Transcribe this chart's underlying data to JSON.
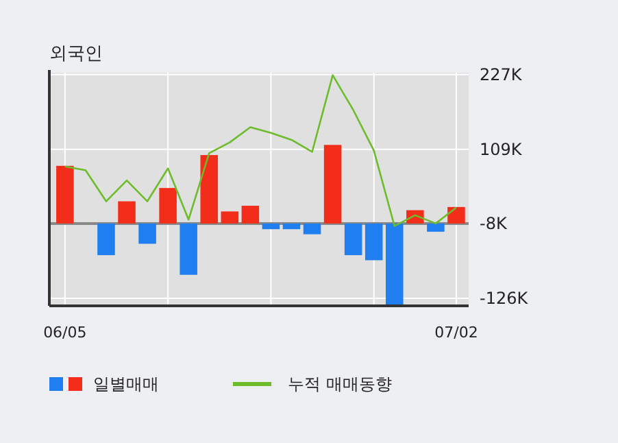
{
  "chart_data": {
    "type": "bar",
    "title": "외국인",
    "categories": [
      "06/05",
      null,
      null,
      null,
      null,
      null,
      null,
      null,
      null,
      null,
      null,
      null,
      null,
      null,
      null,
      null,
      null,
      null,
      null,
      "07/02"
    ],
    "series": [
      {
        "name": "일별매매",
        "base": [
          -8,
          null,
          -8,
          -8,
          -8,
          -8,
          -8,
          -8,
          -8,
          -8,
          -8,
          -8,
          -8,
          -8,
          -8,
          -8,
          -8,
          -8,
          -8,
          -8
        ],
        "values": [
          91,
          null,
          -50,
          35,
          -32,
          56,
          -81,
          108,
          19,
          28,
          -9,
          -9,
          -17,
          124,
          -50,
          -58,
          -128,
          21,
          -13,
          26
        ],
        "colors": [
          "#f22e1a",
          "#f22e1a",
          "#1f7ff0",
          "#f22e1a",
          "#1f7ff0",
          "#f22e1a",
          "#1f7ff0",
          "#f22e1a",
          "#f22e1a",
          "#f22e1a",
          "#1f7ff0",
          "#1f7ff0",
          "#1f7ff0",
          "#f22e1a",
          "#1f7ff0",
          "#1f7ff0",
          "#1f7ff0",
          "#f22e1a",
          "#1f7ff0",
          "#f22e1a"
        ]
      },
      {
        "name": "누적 매매동향",
        "type": "line",
        "color": "#6cbc2c",
        "values": [
          82,
          76,
          27,
          60,
          27,
          79,
          -2,
          103,
          120,
          144,
          135,
          124,
          105,
          226,
          171,
          107,
          -12,
          5,
          -8,
          17
        ]
      }
    ],
    "ylim": [
      -138,
      230
    ],
    "yticks": [
      {
        "value": 227,
        "label": "227K"
      },
      {
        "value": 109,
        "label": "109K"
      },
      {
        "value": -8,
        "label": "-8K"
      },
      {
        "value": -126,
        "label": "-126K"
      }
    ],
    "ref_lines": [
      {
        "axis": "y",
        "value": -8,
        "color": "#888888"
      }
    ],
    "grid": true,
    "legend": "bottom"
  }
}
